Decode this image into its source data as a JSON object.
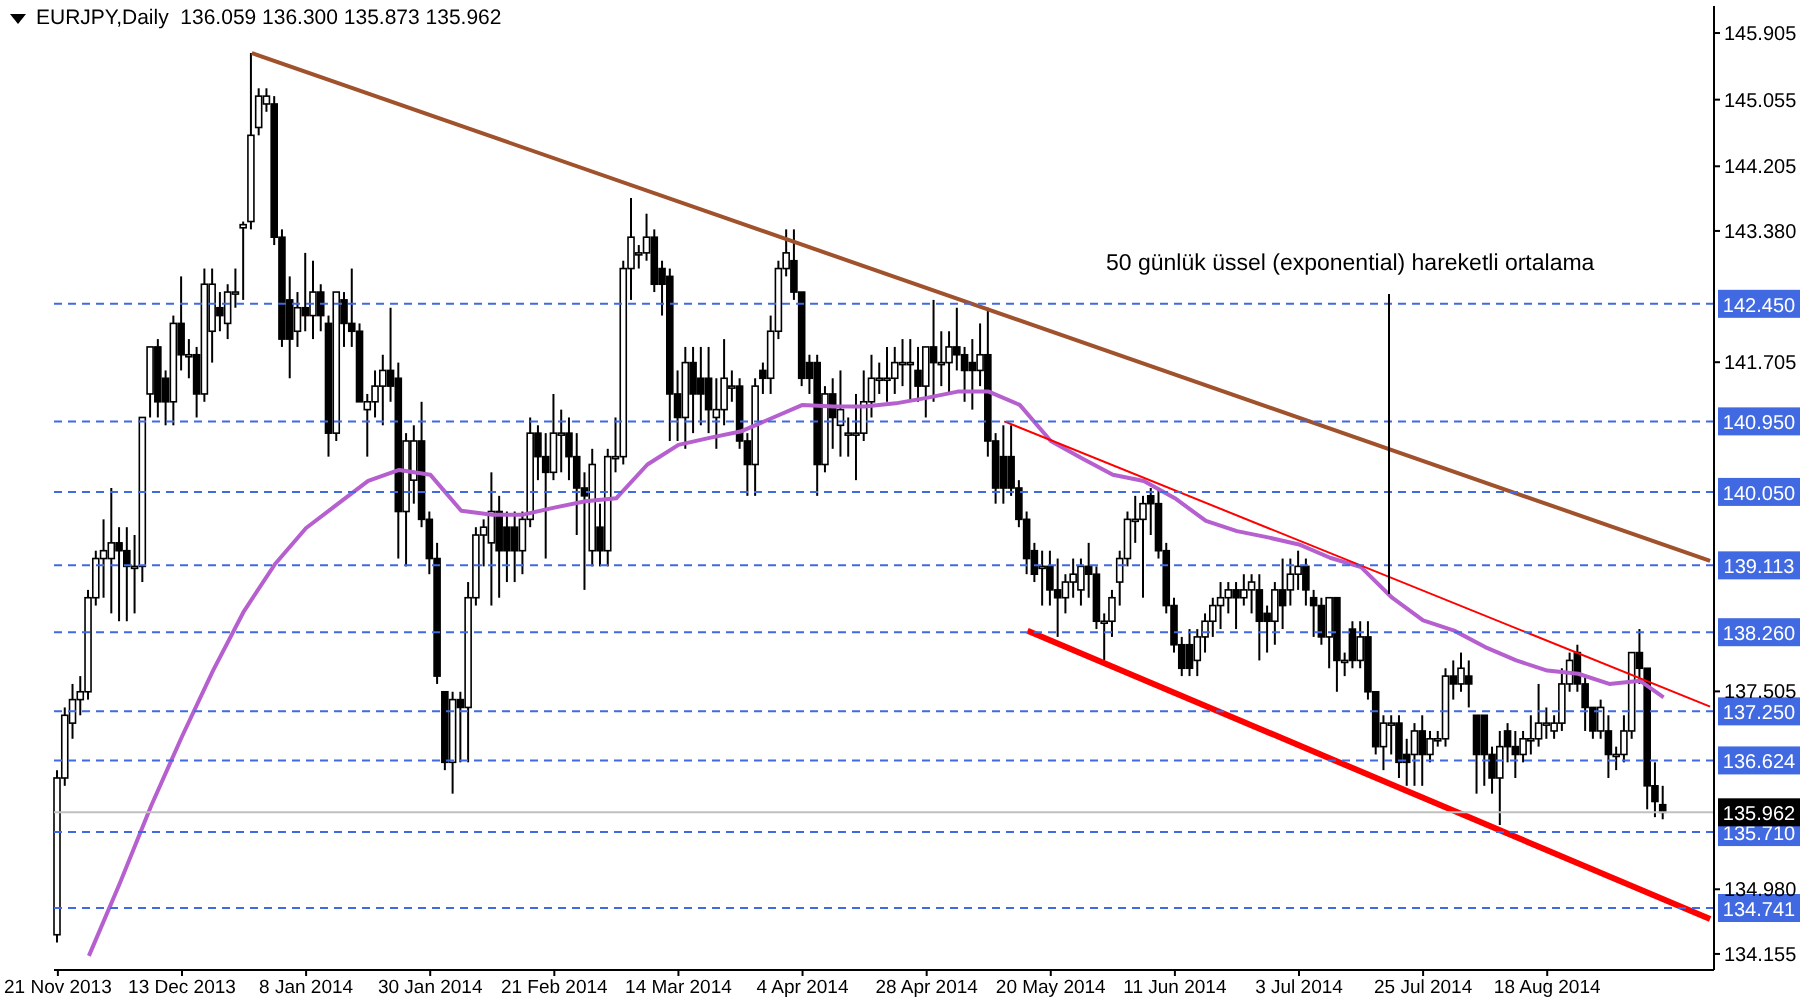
{
  "chart_data": {
    "type": "candlestick",
    "title": "EURJPY,Daily  136.059 136.300 135.873 135.962",
    "annotations": [
      "50 günlük üssel (exponential) hareketli ortalama"
    ],
    "categories": [
      "21 Nov 2013",
      null,
      null,
      null,
      null,
      null,
      null,
      null,
      null,
      null,
      null,
      null,
      null,
      null,
      null,
      null,
      "13 Dec 2013",
      null,
      null,
      null,
      null,
      null,
      null,
      null,
      null,
      null,
      null,
      null,
      null,
      null,
      null,
      null,
      "8 Jan 2014",
      null,
      null,
      null,
      null,
      null,
      null,
      null,
      null,
      null,
      null,
      null,
      null,
      null,
      null,
      null,
      "30 Jan 2014",
      null,
      null,
      null,
      null,
      null,
      null,
      null,
      null,
      null,
      null,
      null,
      null,
      null,
      null,
      null,
      "21 Feb 2014",
      null,
      null,
      null,
      null,
      null,
      null,
      null,
      null,
      null,
      null,
      null,
      null,
      null,
      null,
      null,
      "14 Mar 2014",
      null,
      null,
      null,
      null,
      null,
      null,
      null,
      null,
      null,
      null,
      null,
      null,
      null,
      null,
      null,
      "4 Apr 2014",
      null,
      null,
      null,
      null,
      null,
      null,
      null,
      null,
      null,
      null,
      null,
      null,
      null,
      null,
      null,
      "28 Apr 2014",
      null,
      null,
      null,
      null,
      null,
      null,
      null,
      null,
      null,
      null,
      null,
      null,
      null,
      null,
      null,
      "20 May 2014",
      null,
      null,
      null,
      null,
      null,
      null,
      null,
      null,
      null,
      null,
      null,
      null,
      null,
      null,
      null,
      "11 Jun 2014",
      null,
      null,
      null,
      null,
      null,
      null,
      null,
      null,
      null,
      null,
      null,
      null,
      null,
      null,
      null,
      "3 Jul 2014",
      null,
      null,
      null,
      null,
      null,
      null,
      null,
      null,
      null,
      null,
      null,
      null,
      null,
      null,
      null,
      "25 Jul 2014",
      null,
      null,
      null,
      null,
      null,
      null,
      null,
      null,
      null,
      null,
      null,
      null,
      null,
      null,
      null,
      "18 Aug 2014",
      null,
      null,
      null,
      null,
      null,
      null,
      null,
      null,
      null,
      null,
      null,
      null,
      null,
      null,
      null,
      null,
      null,
      null,
      null,
      null,
      null
    ],
    "ohlc": [
      [
        134.4,
        136.5,
        134.3,
        136.4
      ],
      [
        136.4,
        137.3,
        136.3,
        137.2
      ],
      [
        137.1,
        137.6,
        136.9,
        137.4
      ],
      [
        137.4,
        137.7,
        137.2,
        137.5
      ],
      [
        137.5,
        138.8,
        137.4,
        138.7
      ],
      [
        138.7,
        139.3,
        138.6,
        139.2
      ],
      [
        139.2,
        139.7,
        138.7,
        139.3
      ],
      [
        139.2,
        140.1,
        138.5,
        139.4
      ],
      [
        139.4,
        139.6,
        138.4,
        139.3
      ],
      [
        139.3,
        139.6,
        138.4,
        139.1
      ],
      [
        139.1,
        139.5,
        138.5,
        139.1
      ],
      [
        139.1,
        141.0,
        138.9,
        141.0
      ],
      [
        141.3,
        141.9,
        141.0,
        141.9
      ],
      [
        141.9,
        142.0,
        141.0,
        141.2
      ],
      [
        141.5,
        141.6,
        140.9,
        141.2
      ],
      [
        141.2,
        142.3,
        140.9,
        142.2
      ],
      [
        142.2,
        142.8,
        141.6,
        141.8
      ],
      [
        141.8,
        142.0,
        141.5,
        141.8
      ],
      [
        141.8,
        141.9,
        141.0,
        141.3
      ],
      [
        141.3,
        142.9,
        141.2,
        142.7
      ],
      [
        142.1,
        142.9,
        141.7,
        142.7
      ],
      [
        142.4,
        142.6,
        142.1,
        142.3
      ],
      [
        142.2,
        142.7,
        142.0,
        142.6
      ],
      [
        142.6,
        142.9,
        142.4,
        142.6
      ],
      [
        143.42,
        143.5,
        142.5,
        143.46
      ],
      [
        143.5,
        145.65,
        143.4,
        144.6
      ],
      [
        144.7,
        145.2,
        144.6,
        145.1
      ],
      [
        145.0,
        145.2,
        144.9,
        145.1
      ],
      [
        145.0,
        145.1,
        143.2,
        143.3
      ],
      [
        143.3,
        143.4,
        141.9,
        142.0
      ],
      [
        142.5,
        142.8,
        141.5,
        142.0
      ],
      [
        142.1,
        142.6,
        141.9,
        142.4
      ],
      [
        142.4,
        143.1,
        142.1,
        142.3
      ],
      [
        142.3,
        143.0,
        142.0,
        142.6
      ],
      [
        142.6,
        142.7,
        142.1,
        142.3
      ],
      [
        142.2,
        142.3,
        140.5,
        140.8
      ],
      [
        140.8,
        142.6,
        140.7,
        142.6
      ],
      [
        142.5,
        142.6,
        141.9,
        142.2
      ],
      [
        142.2,
        142.9,
        141.9,
        142.1
      ],
      [
        142.1,
        142.2,
        141.2,
        141.2
      ],
      [
        141.1,
        141.3,
        140.5,
        141.2
      ],
      [
        141.2,
        141.6,
        141.0,
        141.4
      ],
      [
        141.4,
        141.8,
        140.9,
        141.6
      ],
      [
        141.6,
        142.4,
        141.2,
        141.4
      ],
      [
        141.5,
        141.7,
        139.2,
        139.8
      ],
      [
        139.8,
        140.8,
        139.1,
        140.7
      ],
      [
        140.2,
        140.9,
        139.9,
        140.7
      ],
      [
        140.7,
        141.2,
        139.6,
        139.7
      ],
      [
        139.7,
        139.8,
        139.0,
        139.2
      ],
      [
        139.2,
        139.4,
        137.6,
        137.7
      ],
      [
        137.5,
        137.5,
        136.5,
        136.6
      ],
      [
        136.6,
        137.5,
        136.2,
        137.4
      ],
      [
        137.4,
        137.5,
        136.6,
        137.3
      ],
      [
        137.3,
        138.9,
        136.6,
        138.7
      ],
      [
        138.7,
        139.6,
        138.6,
        139.5
      ],
      [
        139.5,
        139.7,
        139.1,
        139.6
      ],
      [
        139.4,
        140.3,
        138.6,
        139.8
      ],
      [
        139.8,
        140.0,
        138.7,
        139.3
      ],
      [
        139.6,
        139.8,
        138.9,
        139.3
      ],
      [
        139.6,
        139.8,
        138.9,
        139.3
      ],
      [
        139.3,
        139.8,
        139.0,
        139.7
      ],
      [
        139.7,
        141.0,
        139.6,
        140.8
      ],
      [
        140.8,
        140.9,
        140.2,
        140.5
      ],
      [
        140.5,
        140.8,
        139.2,
        140.3
      ],
      [
        140.3,
        141.3,
        140.2,
        140.8
      ],
      [
        140.8,
        141.1,
        140.3,
        140.8
      ],
      [
        140.8,
        141.0,
        140.2,
        140.5
      ],
      [
        140.5,
        140.8,
        139.5,
        140.1
      ],
      [
        140.1,
        140.3,
        138.8,
        140.0
      ],
      [
        139.3,
        140.6,
        139.1,
        140.4
      ],
      [
        139.6,
        139.9,
        139.1,
        139.3
      ],
      [
        139.3,
        140.6,
        139.1,
        140.5
      ],
      [
        140.5,
        141.0,
        140.3,
        140.5
      ],
      [
        140.5,
        143.0,
        140.4,
        142.9
      ],
      [
        142.9,
        143.8,
        142.5,
        143.3
      ],
      [
        143.1,
        143.2,
        142.9,
        143.1
      ],
      [
        143.1,
        143.6,
        143.0,
        143.3
      ],
      [
        143.3,
        143.4,
        142.6,
        142.7
      ],
      [
        142.9,
        143.0,
        142.3,
        142.7
      ],
      [
        142.8,
        142.9,
        140.7,
        141.3
      ],
      [
        141.3,
        141.6,
        140.7,
        141.0
      ],
      [
        141.0,
        141.9,
        140.6,
        141.7
      ],
      [
        141.7,
        141.9,
        140.8,
        141.3
      ],
      [
        141.5,
        141.9,
        140.9,
        141.3
      ],
      [
        141.5,
        141.9,
        140.8,
        141.1
      ],
      [
        141.0,
        141.5,
        140.6,
        141.1
      ],
      [
        141.1,
        142.0,
        140.9,
        141.5
      ],
      [
        141.4,
        141.6,
        141.2,
        141.4
      ],
      [
        141.4,
        141.5,
        140.6,
        140.7
      ],
      [
        140.7,
        140.8,
        140.0,
        140.4
      ],
      [
        140.4,
        141.5,
        140.0,
        141.4
      ],
      [
        141.6,
        141.7,
        141.3,
        141.5
      ],
      [
        141.5,
        142.3,
        141.3,
        142.1
      ],
      [
        142.1,
        143.0,
        142.0,
        142.9
      ],
      [
        142.9,
        143.4,
        142.8,
        143.1
      ],
      [
        143.0,
        143.4,
        142.5,
        142.6
      ],
      [
        142.6,
        142.6,
        141.4,
        141.5
      ],
      [
        141.7,
        141.8,
        141.3,
        141.5
      ],
      [
        141.7,
        141.8,
        140.0,
        140.4
      ],
      [
        140.4,
        141.4,
        140.3,
        141.3
      ],
      [
        141.3,
        141.5,
        140.6,
        141.0
      ],
      [
        140.9,
        141.6,
        140.5,
        141.1
      ],
      [
        140.8,
        141.0,
        140.5,
        140.8
      ],
      [
        140.8,
        141.3,
        140.2,
        140.8
      ],
      [
        140.8,
        141.6,
        140.7,
        141.2
      ],
      [
        141.2,
        141.8,
        141.0,
        141.5
      ],
      [
        141.5,
        141.7,
        141.3,
        141.5
      ],
      [
        141.5,
        141.9,
        141.2,
        141.5
      ],
      [
        141.5,
        141.9,
        141.3,
        141.7
      ],
      [
        141.7,
        142.0,
        141.4,
        141.7
      ],
      [
        141.7,
        142.0,
        141.2,
        141.7
      ],
      [
        141.6,
        141.9,
        141.2,
        141.4
      ],
      [
        141.4,
        141.9,
        141.0,
        141.9
      ],
      [
        141.9,
        142.5,
        141.2,
        141.7
      ],
      [
        141.7,
        142.1,
        141.4,
        141.7
      ],
      [
        141.7,
        142.1,
        141.3,
        141.9
      ],
      [
        141.9,
        142.4,
        141.6,
        141.8
      ],
      [
        141.8,
        141.9,
        141.2,
        141.6
      ],
      [
        141.7,
        142.0,
        141.1,
        141.6
      ],
      [
        141.6,
        142.2,
        141.4,
        141.8
      ],
      [
        141.8,
        142.4,
        140.5,
        140.7
      ],
      [
        140.7,
        140.8,
        139.9,
        140.1
      ],
      [
        140.5,
        140.9,
        139.9,
        140.1
      ],
      [
        140.5,
        140.9,
        140.0,
        140.1
      ],
      [
        140.1,
        140.2,
        139.6,
        139.7
      ],
      [
        139.7,
        139.8,
        139.0,
        139.2
      ],
      [
        139.3,
        139.4,
        138.9,
        139.0
      ],
      [
        139.1,
        139.3,
        138.6,
        139.1
      ],
      [
        139.1,
        139.3,
        138.6,
        138.8
      ],
      [
        138.8,
        139.2,
        138.2,
        138.7
      ],
      [
        138.7,
        139.0,
        138.5,
        138.9
      ],
      [
        138.9,
        139.2,
        138.7,
        139.0
      ],
      [
        138.8,
        139.2,
        138.6,
        139.1
      ],
      [
        139.1,
        139.4,
        138.7,
        139.0
      ],
      [
        139.0,
        139.1,
        138.3,
        138.4
      ],
      [
        138.4,
        138.5,
        137.9,
        138.4
      ],
      [
        138.4,
        138.8,
        138.2,
        138.7
      ],
      [
        138.9,
        139.3,
        138.6,
        139.2
      ],
      [
        139.2,
        139.8,
        139.1,
        139.7
      ],
      [
        139.7,
        140.0,
        139.4,
        139.7
      ],
      [
        139.7,
        140.0,
        138.7,
        139.9
      ],
      [
        140.0,
        140.1,
        139.5,
        139.9
      ],
      [
        139.9,
        140.1,
        139.2,
        139.3
      ],
      [
        139.3,
        139.4,
        138.5,
        138.6
      ],
      [
        138.6,
        138.7,
        138.0,
        138.1
      ],
      [
        138.1,
        138.2,
        137.7,
        137.8
      ],
      [
        138.1,
        138.3,
        137.7,
        137.8
      ],
      [
        137.9,
        138.3,
        137.7,
        138.2
      ],
      [
        138.2,
        138.5,
        138.0,
        138.4
      ],
      [
        138.4,
        138.7,
        138.2,
        138.6
      ],
      [
        138.6,
        138.9,
        138.3,
        138.7
      ],
      [
        138.7,
        138.9,
        138.5,
        138.8
      ],
      [
        138.8,
        138.9,
        138.3,
        138.7
      ],
      [
        138.7,
        139.0,
        138.6,
        138.8
      ],
      [
        138.8,
        139.0,
        138.5,
        138.9
      ],
      [
        138.8,
        139.0,
        137.9,
        138.4
      ],
      [
        138.5,
        138.6,
        138.0,
        138.4
      ],
      [
        138.4,
        138.9,
        138.1,
        138.8
      ],
      [
        138.8,
        139.2,
        138.3,
        138.6
      ],
      [
        138.8,
        139.2,
        138.6,
        139.0
      ],
      [
        139.0,
        139.3,
        138.8,
        139.1
      ],
      [
        139.1,
        139.2,
        138.6,
        138.8
      ],
      [
        138.7,
        138.8,
        138.2,
        138.6
      ],
      [
        138.6,
        138.7,
        138.1,
        138.2
      ],
      [
        138.2,
        138.7,
        137.8,
        138.7
      ],
      [
        138.7,
        138.7,
        137.5,
        137.9
      ],
      [
        137.9,
        138.0,
        137.7,
        137.9
      ],
      [
        138.3,
        138.4,
        137.8,
        137.9
      ],
      [
        137.9,
        138.4,
        137.8,
        138.2
      ],
      [
        138.2,
        138.4,
        137.4,
        137.5
      ],
      [
        137.5,
        137.5,
        136.7,
        136.8
      ],
      [
        136.8,
        137.2,
        136.5,
        137.1
      ],
      [
        137.1,
        137.2,
        136.7,
        137.1
      ],
      [
        137.1,
        137.2,
        136.4,
        136.6
      ],
      [
        136.7,
        136.9,
        136.3,
        136.6
      ],
      [
        136.7,
        137.1,
        136.3,
        137.0
      ],
      [
        137.0,
        137.2,
        136.3,
        136.7
      ],
      [
        136.7,
        137.0,
        136.6,
        136.9
      ],
      [
        136.9,
        137.0,
        136.8,
        136.9
      ],
      [
        136.9,
        137.8,
        136.8,
        137.7
      ],
      [
        137.7,
        137.9,
        137.4,
        137.6
      ],
      [
        137.6,
        138.0,
        137.5,
        137.8
      ],
      [
        137.7,
        137.9,
        137.3,
        137.6
      ],
      [
        137.2,
        137.2,
        136.2,
        136.7
      ],
      [
        137.2,
        137.2,
        136.3,
        136.7
      ],
      [
        136.7,
        136.8,
        136.2,
        136.4
      ],
      [
        136.4,
        137.0,
        135.8,
        136.8
      ],
      [
        137.0,
        137.1,
        136.6,
        136.8
      ],
      [
        136.8,
        137.0,
        136.4,
        136.7
      ],
      [
        136.7,
        137.0,
        136.6,
        136.9
      ],
      [
        136.9,
        137.2,
        136.7,
        136.9
      ],
      [
        136.9,
        137.6,
        136.8,
        137.1
      ],
      [
        137.1,
        137.3,
        136.9,
        137.1
      ],
      [
        137.0,
        137.2,
        136.9,
        137.1
      ],
      [
        137.1,
        137.8,
        137.0,
        137.6
      ],
      [
        137.6,
        138.0,
        137.5,
        137.9
      ],
      [
        138.0,
        138.1,
        137.5,
        137.6
      ],
      [
        137.6,
        137.7,
        137.0,
        137.3
      ],
      [
        137.3,
        137.3,
        136.9,
        137.0
      ],
      [
        137.0,
        137.4,
        136.9,
        137.3
      ],
      [
        137.0,
        137.2,
        136.4,
        136.7
      ],
      [
        136.7,
        136.8,
        136.5,
        136.7
      ],
      [
        136.7,
        137.2,
        136.6,
        137.0
      ],
      [
        137.0,
        138.0,
        136.9,
        138.0
      ],
      [
        138.0,
        138.3,
        137.6,
        137.8
      ],
      [
        137.8,
        137.8,
        136.0,
        136.3
      ],
      [
        136.3,
        136.6,
        135.9,
        136.1
      ],
      [
        136.059,
        136.3,
        135.873,
        135.962
      ],
      null,
      null,
      null,
      null,
      null,
      null
    ],
    "series": [
      {
        "type": "line",
        "color": "#b65fcf",
        "values": [
          null,
          null,
          null,
          null,
          134.13,
          null,
          null,
          null,
          135.06,
          null,
          null,
          null,
          136.04,
          null,
          null,
          null,
          136.93,
          null,
          null,
          null,
          137.77,
          null,
          null,
          null,
          138.53,
          null,
          null,
          null,
          139.13,
          null,
          null,
          null,
          139.59,
          null,
          null,
          null,
          139.89,
          null,
          null,
          null,
          140.19,
          null,
          null,
          null,
          140.33,
          null,
          null,
          null,
          140.27,
          null,
          null,
          null,
          139.81,
          null,
          null,
          null,
          139.76,
          null,
          null,
          null,
          139.76,
          null,
          null,
          null,
          139.85,
          null,
          null,
          null,
          139.93,
          null,
          null,
          null,
          139.97,
          null,
          null,
          null,
          140.4,
          null,
          null,
          null,
          140.65,
          null,
          null,
          null,
          140.74,
          null,
          null,
          null,
          140.82,
          null,
          null,
          null,
          140.99,
          null,
          null,
          null,
          141.16,
          null,
          null,
          null,
          141.14,
          null,
          null,
          null,
          141.14,
          null,
          null,
          null,
          141.18,
          null,
          null,
          null,
          141.25,
          null,
          null,
          null,
          141.33,
          null,
          null,
          null,
          141.33,
          null,
          null,
          null,
          141.16,
          null,
          null,
          null,
          140.7,
          null,
          null,
          null,
          140.48,
          null,
          null,
          null,
          140.27,
          null,
          null,
          null,
          140.19,
          null,
          null,
          null,
          139.97,
          null,
          null,
          null,
          139.68,
          null,
          null,
          null,
          139.55,
          null,
          null,
          null,
          139.47,
          null,
          null,
          null,
          139.38,
          null,
          null,
          null,
          139.21,
          null,
          null,
          null,
          139.09,
          null,
          null,
          null,
          138.7,
          null,
          null,
          null,
          138.41,
          null,
          null,
          null,
          138.28,
          null,
          null,
          null,
          138.07,
          null,
          null,
          null,
          137.9,
          null,
          null,
          null,
          137.77,
          null,
          null,
          null,
          137.73,
          null,
          null,
          null,
          137.6,
          null,
          null,
          null,
          137.64,
          null,
          null,
          137.43,
          null,
          null,
          null,
          null,
          null,
          null
        ]
      },
      {
        "type": "line",
        "color": "#a0522d",
        "values": [
          null,
          null,
          null,
          null,
          null,
          null,
          null,
          null,
          null,
          null,
          null,
          null,
          null,
          null,
          null,
          null,
          null,
          null,
          null,
          null,
          null,
          null,
          null,
          null,
          null,
          145.65,
          null,
          null,
          null,
          null,
          null,
          null,
          null,
          null,
          null,
          null,
          null,
          null,
          null,
          null,
          null,
          null,
          null,
          null,
          null,
          null,
          null,
          null,
          null,
          null,
          null,
          null,
          null,
          null,
          null,
          null,
          null,
          null,
          null,
          null,
          null,
          null,
          null,
          null,
          null,
          null,
          null,
          null,
          null,
          null,
          null,
          null,
          null,
          null,
          null,
          null,
          null,
          null,
          null,
          null,
          null,
          null,
          null,
          null,
          null,
          null,
          null,
          null,
          null,
          null,
          null,
          null,
          null,
          null,
          null,
          null,
          null,
          null,
          null,
          null,
          null,
          null,
          null,
          null,
          null,
          null,
          null,
          null,
          null,
          null,
          null,
          null,
          null,
          null,
          null,
          null,
          null,
          null,
          null,
          null,
          null,
          null,
          null,
          null,
          null,
          null,
          null,
          null,
          null,
          null,
          null,
          null,
          null,
          null,
          null,
          null,
          null,
          null,
          null,
          null,
          null,
          null,
          null,
          null,
          null,
          null,
          null,
          null,
          null,
          null,
          null,
          null,
          null,
          null,
          null,
          null,
          null,
          null,
          null,
          null,
          null,
          null,
          null,
          null,
          null,
          null,
          null,
          null,
          null,
          null,
          null,
          null,
          null,
          null,
          null,
          null,
          null,
          null,
          null,
          null,
          null,
          null,
          null,
          null,
          null,
          null,
          null,
          null,
          null,
          null,
          null,
          null,
          null,
          null,
          null,
          null,
          null,
          null,
          null,
          null,
          null,
          null,
          null,
          null,
          null,
          null,
          null,
          null,
          null,
          null,
          null,
          null,
          null,
          139.17
        ]
      },
      {
        "type": "line",
        "color": "#ff0000",
        "values": [
          null,
          null,
          null,
          null,
          null,
          null,
          null,
          null,
          null,
          null,
          null,
          null,
          null,
          null,
          null,
          null,
          null,
          null,
          null,
          null,
          null,
          null,
          null,
          null,
          null,
          null,
          null,
          null,
          null,
          null,
          null,
          null,
          null,
          null,
          null,
          null,
          null,
          null,
          null,
          null,
          null,
          null,
          null,
          null,
          null,
          null,
          null,
          null,
          null,
          null,
          null,
          null,
          null,
          null,
          null,
          null,
          null,
          null,
          null,
          null,
          null,
          null,
          null,
          null,
          null,
          null,
          null,
          null,
          null,
          null,
          null,
          null,
          null,
          null,
          null,
          null,
          null,
          null,
          null,
          null,
          null,
          null,
          null,
          null,
          null,
          null,
          null,
          null,
          null,
          null,
          null,
          null,
          null,
          null,
          null,
          null,
          null,
          null,
          null,
          null,
          null,
          null,
          null,
          null,
          null,
          null,
          null,
          null,
          null,
          null,
          null,
          null,
          null,
          null,
          null,
          null,
          null,
          null,
          null,
          null,
          null,
          null,
          140.95,
          null,
          null,
          null,
          null,
          null,
          null,
          null,
          null,
          null,
          null,
          null,
          null,
          null,
          null,
          null,
          null,
          null,
          null,
          null,
          null,
          null,
          null,
          null,
          null,
          null,
          null,
          null,
          null,
          null,
          null,
          null,
          null,
          null,
          null,
          null,
          null,
          null,
          null,
          null,
          null,
          null,
          null,
          null,
          null,
          null,
          null,
          null,
          null,
          null,
          null,
          null,
          null,
          null,
          null,
          null,
          null,
          null,
          null,
          null,
          null,
          null,
          null,
          null,
          null,
          null,
          null,
          null,
          null,
          null,
          null,
          null,
          null,
          null,
          null,
          null,
          null,
          null,
          null,
          null,
          null,
          null,
          null,
          null,
          null,
          null,
          null,
          null,
          null,
          null,
          null,
          137.31
        ]
      },
      {
        "type": "line",
        "color": "#ff0000",
        "values": [
          null,
          null,
          null,
          null,
          null,
          null,
          null,
          null,
          null,
          null,
          null,
          null,
          null,
          null,
          null,
          null,
          null,
          null,
          null,
          null,
          null,
          null,
          null,
          null,
          null,
          null,
          null,
          null,
          null,
          null,
          null,
          null,
          null,
          null,
          null,
          null,
          null,
          null,
          null,
          null,
          null,
          null,
          null,
          null,
          null,
          null,
          null,
          null,
          null,
          null,
          null,
          null,
          null,
          null,
          null,
          null,
          null,
          null,
          null,
          null,
          null,
          null,
          null,
          null,
          null,
          null,
          null,
          null,
          null,
          null,
          null,
          null,
          null,
          null,
          null,
          null,
          null,
          null,
          null,
          null,
          null,
          null,
          null,
          null,
          null,
          null,
          null,
          null,
          null,
          null,
          null,
          null,
          null,
          null,
          null,
          null,
          null,
          null,
          null,
          null,
          null,
          null,
          null,
          null,
          null,
          null,
          null,
          null,
          null,
          null,
          null,
          null,
          null,
          null,
          null,
          null,
          null,
          null,
          null,
          null,
          null,
          null,
          null,
          null,
          null,
          138.28,
          null,
          null,
          null,
          null,
          null,
          null,
          null,
          null,
          null,
          null,
          null,
          null,
          null,
          null,
          null,
          null,
          null,
          null,
          null,
          null,
          null,
          null,
          null,
          null,
          null,
          null,
          null,
          null,
          null,
          null,
          null,
          null,
          null,
          null,
          null,
          null,
          null,
          null,
          null,
          null,
          null,
          null,
          null,
          null,
          null,
          null,
          null,
          null,
          null,
          null,
          null,
          null,
          null,
          null,
          null,
          null,
          null,
          null,
          null,
          null,
          null,
          null,
          null,
          null,
          null,
          null,
          null,
          null,
          null,
          null,
          null,
          null,
          null,
          null,
          null,
          null,
          null,
          null,
          null,
          null,
          null,
          null,
          null,
          null,
          null,
          null,
          null,
          134.6
        ]
      }
    ],
    "ylim": [
      133.95,
      146.25
    ],
    "yticks": [
      145.905,
      145.055,
      144.205,
      {
        "value": 143.38,
        "label": "143.380"
      },
      141.705,
      137.505,
      {
        "value": 134.98,
        "label": "134.980"
      },
      134.155
    ],
    "ref_lines": [
      {
        "axis": "y",
        "value": 142.45,
        "label": "142.450",
        "color": "#4169e1",
        "line_style": "dashed"
      },
      {
        "axis": "y",
        "value": 140.95,
        "label": "140.950",
        "color": "#4169e1",
        "line_style": "dashed"
      },
      {
        "axis": "y",
        "value": 140.05,
        "label": "140.050",
        "color": "#4169e1",
        "line_style": "dashed"
      },
      {
        "axis": "y",
        "value": 139.113,
        "label": "139.113",
        "color": "#4169e1",
        "line_style": "dashed"
      },
      {
        "axis": "y",
        "value": 138.26,
        "label": "138.260",
        "color": "#4169e1",
        "line_style": "dashed"
      },
      {
        "axis": "y",
        "value": 137.25,
        "label": "137.250",
        "color": "#4169e1",
        "line_style": "dashed"
      },
      {
        "axis": "y",
        "value": 136.624,
        "label": "136.624",
        "color": "#4169e1",
        "line_style": "dashed"
      },
      {
        "axis": "y",
        "value": 135.71,
        "label": "135.710",
        "color": "#4169e1",
        "line_style": "dashed"
      },
      {
        "axis": "y",
        "value": 134.741,
        "label": "134.741",
        "color": "#4169e1",
        "line_style": "dashed"
      },
      {
        "axis": "y",
        "value": 135.962,
        "label": "135.962",
        "color": "#c0c0c0",
        "line_style": "solid"
      }
    ]
  }
}
